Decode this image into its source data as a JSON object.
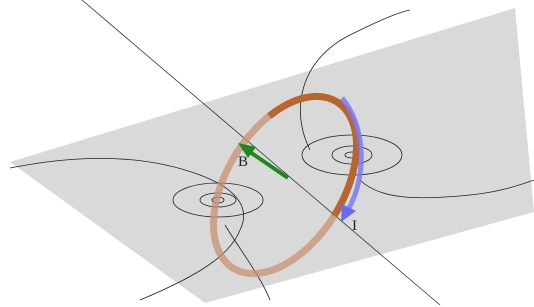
{
  "labels": {
    "field": "B",
    "current": "I"
  }
}
